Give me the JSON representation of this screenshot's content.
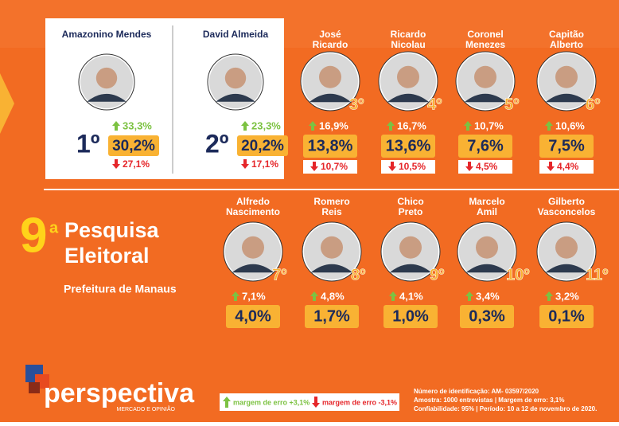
{
  "header": {
    "number": "9",
    "superscript": "a",
    "line1": "Pesquisa",
    "line2": "Eleitoral",
    "subtitle": "Prefeitura de Manaus"
  },
  "featured": [
    {
      "name": "Amazonino Mendes",
      "rank": "1º",
      "up": "33,3%",
      "value": "30,2%",
      "down": "27,1%"
    },
    {
      "name": "David Almeida",
      "rank": "2º",
      "up": "23,3%",
      "value": "20,2%",
      "down": "17,1%"
    }
  ],
  "top_row": [
    {
      "name": [
        "José",
        "Ricardo"
      ],
      "rank": "3º",
      "up": "16,9%",
      "value": "13,8%",
      "down": "10,7%"
    },
    {
      "name": [
        "Ricardo",
        "Nicolau"
      ],
      "rank": "4º",
      "up": "16,7%",
      "value": "13,6%",
      "down": "10,5%"
    },
    {
      "name": [
        "Coronel",
        "Menezes"
      ],
      "rank": "5º",
      "up": "10,7%",
      "value": "7,6%",
      "down": "4,5%"
    },
    {
      "name": [
        "Capitão",
        "Alberto"
      ],
      "rank": "6º",
      "up": "10,6%",
      "value": "7,5%",
      "down": "4,4%"
    }
  ],
  "bottom_row": [
    {
      "name": [
        "Alfredo",
        "Nascimento"
      ],
      "rank": "7º",
      "up": "7,1%",
      "value": "4,0%"
    },
    {
      "name": [
        "Romero",
        "Reis"
      ],
      "rank": "8º",
      "up": "4,8%",
      "value": "1,7%"
    },
    {
      "name": [
        "Chico",
        "Preto"
      ],
      "rank": "9º",
      "up": "4,1%",
      "value": "1,0%"
    },
    {
      "name": [
        "Marcelo",
        "Amil"
      ],
      "rank": "10º",
      "up": "3,4%",
      "value": "0,3%"
    },
    {
      "name": [
        "Gilberto",
        "Vasconcelos"
      ],
      "rank": "11º",
      "up": "3,2%",
      "value": "0,1%"
    }
  ],
  "logo": {
    "name": "perspectiva",
    "tagline": "MERCADO E OPINIÃO"
  },
  "legend": {
    "up": "margem de erro +3,1%",
    "down": "margem de erro -3,1%"
  },
  "footer": [
    "Número de identificação: AM- 03597/2020",
    "Amostra: 1000 entrevistas | Margem de erro: 3,1%",
    "Confiabilidade: 95% | Período: 10 a 12 de novembro de 2020."
  ]
}
